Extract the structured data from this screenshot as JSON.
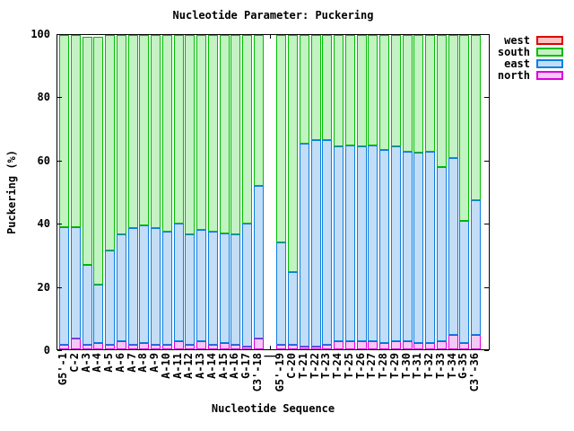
{
  "title": "Nucleotide Parameter: Puckering",
  "axes": {
    "xlabel": "Nucleotide Sequence",
    "ylabel": "Puckering (%)",
    "y_ticks": [
      0,
      20,
      40,
      60,
      80,
      100
    ]
  },
  "separator_label": "|",
  "legend": {
    "position": "top-right-outside",
    "items": [
      {
        "label": "west",
        "stroke": "#e00000",
        "fill": "#ffc2c2"
      },
      {
        "label": "south",
        "stroke": "#00bd00",
        "fill": "#c3f2c3"
      },
      {
        "label": "east",
        "stroke": "#0b7fe0",
        "fill": "#c3ddf7"
      },
      {
        "label": "north",
        "stroke": "#dd00dd",
        "fill": "#f6c8f6"
      }
    ]
  },
  "chart_data": {
    "type": "bar",
    "stacked": true,
    "stack_order_bottom_up": [
      "north",
      "east",
      "south",
      "west"
    ],
    "ylim": [
      0,
      100
    ],
    "grid": false,
    "categories": [
      "G5'-1",
      "C-2",
      "A-3",
      "A-4",
      "A-5",
      "A-6",
      "A-7",
      "A-8",
      "A-9",
      "A-10",
      "A-11",
      "A-12",
      "A-13",
      "A-14",
      "A-15",
      "A-16",
      "G-17",
      "C3'-18",
      "|",
      "G5'-19",
      "C-20",
      "T-21",
      "T-22",
      "T-23",
      "T-24",
      "T-25",
      "T-26",
      "T-27",
      "T-28",
      "T-29",
      "T-30",
      "T-31",
      "T-32",
      "T-33",
      "T-34",
      "G-35",
      "C3'-36"
    ],
    "series": [
      {
        "name": "north",
        "values": [
          1.5,
          3.5,
          1.5,
          2,
          1.5,
          2.5,
          1.5,
          2,
          1.5,
          1.5,
          2.5,
          1.5,
          2.5,
          1.5,
          2,
          1.5,
          1,
          3.5,
          0,
          1.5,
          1.5,
          1,
          1,
          1.5,
          2.5,
          2.5,
          2.5,
          2.5,
          2,
          2.5,
          2.5,
          2,
          2,
          2.5,
          4.5,
          2,
          4.5
        ]
      },
      {
        "name": "east",
        "values": [
          37.5,
          35.5,
          25.5,
          18.5,
          30,
          34,
          37,
          37.5,
          37,
          36,
          37.5,
          35,
          35.5,
          36,
          35,
          35,
          39,
          48.5,
          0,
          32.5,
          23,
          64.5,
          65.5,
          65,
          62,
          62.5,
          62,
          62.5,
          61.5,
          62,
          60.5,
          60.5,
          61,
          55.5,
          56.5,
          39,
          43
        ]
      },
      {
        "name": "south",
        "values": [
          61,
          61,
          72.5,
          79,
          68.5,
          63.5,
          61.5,
          60.5,
          61.5,
          62.5,
          60,
          63.5,
          62,
          62.5,
          63,
          63.5,
          60,
          48,
          0,
          66,
          75.5,
          34.5,
          33.5,
          33.5,
          35.5,
          35,
          35.5,
          35,
          36.5,
          35.5,
          37,
          37.5,
          37,
          42,
          39,
          59,
          52.5
        ]
      },
      {
        "name": "west",
        "values": [
          0,
          0,
          0,
          0,
          0,
          0,
          0,
          0,
          0,
          0,
          0,
          0,
          0,
          0,
          0,
          0,
          0,
          0,
          0,
          0,
          0,
          0,
          0,
          0,
          0,
          0,
          0,
          0,
          0,
          0,
          0,
          0,
          0,
          0,
          0,
          0,
          0
        ]
      }
    ]
  }
}
